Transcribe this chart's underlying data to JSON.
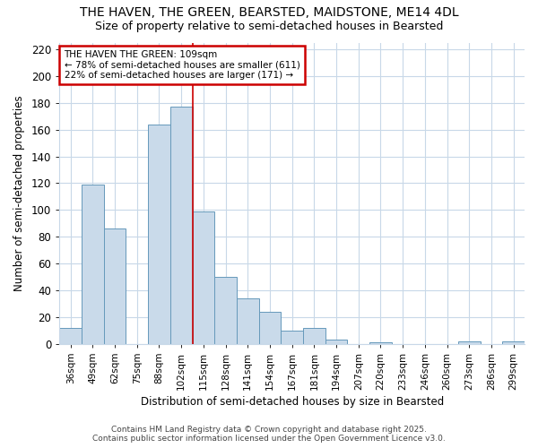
{
  "title1": "THE HAVEN, THE GREEN, BEARSTED, MAIDSTONE, ME14 4DL",
  "title2": "Size of property relative to semi-detached houses in Bearsted",
  "xlabel": "Distribution of semi-detached houses by size in Bearsted",
  "ylabel": "Number of semi-detached properties",
  "footnote1": "Contains HM Land Registry data © Crown copyright and database right 2025.",
  "footnote2": "Contains public sector information licensed under the Open Government Licence v3.0.",
  "bar_labels": [
    "36sqm",
    "49sqm",
    "62sqm",
    "75sqm",
    "88sqm",
    "102sqm",
    "115sqm",
    "128sqm",
    "141sqm",
    "154sqm",
    "167sqm",
    "181sqm",
    "194sqm",
    "207sqm",
    "220sqm",
    "233sqm",
    "246sqm",
    "260sqm",
    "273sqm",
    "286sqm",
    "299sqm"
  ],
  "bar_values": [
    12,
    119,
    86,
    0,
    164,
    177,
    99,
    50,
    34,
    24,
    10,
    12,
    3,
    0,
    1,
    0,
    0,
    0,
    2,
    0,
    2
  ],
  "bar_color": "#c9daea",
  "bar_edge_color": "#6699bb",
  "background_color": "#ffffff",
  "grid_color": "#c8d8e8",
  "red_line_x": 6.0,
  "annotation_title": "THE HAVEN THE GREEN: 109sqm",
  "annotation_line1": "← 78% of semi-detached houses are smaller (611)",
  "annotation_line2": "22% of semi-detached houses are larger (171) →",
  "annotation_box_facecolor": "#ffffff",
  "annotation_edge_color": "#cc0000",
  "ylim": [
    0,
    225
  ],
  "yticks": [
    0,
    20,
    40,
    60,
    80,
    100,
    120,
    140,
    160,
    180,
    200,
    220
  ]
}
